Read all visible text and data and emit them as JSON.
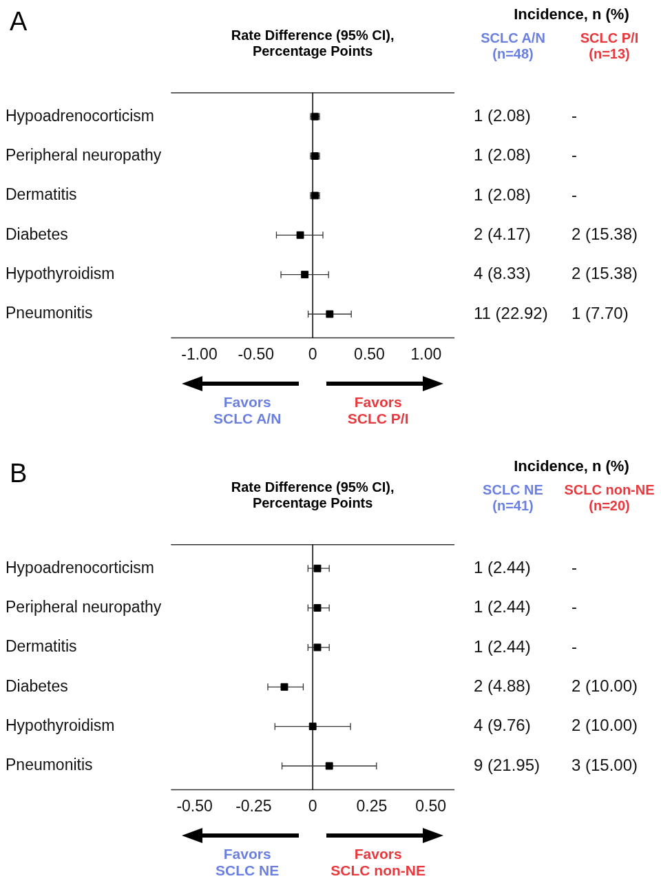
{
  "chart_data": [
    {
      "type": "scatter",
      "title": "A",
      "xlabel": "Rate Difference (95% CI),\nPercentage Points",
      "legend_title": "Incidence, n (%)",
      "orientation": "horizontal",
      "marker": "square",
      "grid": false,
      "legend": false,
      "categories": [
        "Hypoadrenocorticism",
        "Peripheral neuropathy",
        "Dermatitis",
        "Diabetes",
        "Hypothyroidism",
        "Pneumonitis"
      ],
      "series": [
        {
          "color": "#000000",
          "values": [
            0.02,
            0.02,
            0.02,
            -0.11,
            -0.07,
            0.15
          ],
          "errors": [
            [
              -0.02,
              0.06
            ],
            [
              -0.02,
              0.06
            ],
            [
              -0.02,
              0.06
            ],
            [
              -0.32,
              0.09
            ],
            [
              -0.28,
              0.14
            ],
            [
              -0.04,
              0.34
            ]
          ]
        }
      ],
      "xlim": [
        -1.25,
        1.25
      ],
      "xticks": [
        {
          "value": -1,
          "label": "-1.00"
        },
        {
          "value": -0.5,
          "label": "-0.50"
        },
        0,
        {
          "value": 0.5,
          "label": "0.50"
        },
        {
          "value": 1,
          "label": "1.00"
        }
      ],
      "ref_lines": [
        {
          "axis": "x",
          "value": 0,
          "color": "#000000"
        }
      ],
      "annotations": [
        "SCLC A/N\n(n=48)",
        "SCLC P/I\n(n=13)",
        "Favors\nSCLC A/N",
        "Favors\nSCLC P/I",
        "1 (2.08)",
        "-",
        "1 (2.08)",
        "-",
        "1 (2.08)",
        "-",
        "2 (4.17)",
        "2 (15.38)",
        "4 (8.33)",
        "2 (15.38)",
        "11 (22.92)",
        "1 (7.70)"
      ]
    },
    {
      "type": "scatter",
      "title": "B",
      "xlabel": "Rate Difference (95% CI),\nPercentage Points",
      "legend_title": "Incidence, n (%)",
      "orientation": "horizontal",
      "marker": "square",
      "grid": false,
      "legend": false,
      "categories": [
        "Hypoadrenocorticism",
        "Peripheral neuropathy",
        "Dermatitis",
        "Diabetes",
        "Hypothyroidism",
        "Pneumonitis"
      ],
      "series": [
        {
          "color": "#000000",
          "values": [
            0.02,
            0.02,
            0.02,
            -0.12,
            0,
            0.07
          ],
          "errors": [
            [
              -0.02,
              0.07
            ],
            [
              -0.02,
              0.07
            ],
            [
              -0.02,
              0.07
            ],
            [
              -0.19,
              -0.04
            ],
            [
              -0.16,
              0.16
            ],
            [
              -0.13,
              0.27
            ]
          ]
        }
      ],
      "xlim": [
        -0.6,
        0.6
      ],
      "xticks": [
        {
          "value": -0.5,
          "label": "-0.50"
        },
        {
          "value": -0.25,
          "label": "-0.25"
        },
        0,
        {
          "value": 0.25,
          "label": "0.25"
        },
        {
          "value": 0.5,
          "label": "0.50"
        }
      ],
      "ref_lines": [
        {
          "axis": "x",
          "value": 0,
          "color": "#000000"
        }
      ],
      "annotations": [
        "SCLC NE\n(n=41)",
        "SCLC non-NE\n(n=20)",
        "Favors\nSCLC NE",
        "Favors\nSCLC non-NE",
        "1 (2.44)",
        "-",
        "1 (2.44)",
        "-",
        "1 (2.44)",
        "-",
        "2 (4.88)",
        "2 (10.00)",
        "4 (9.76)",
        "2 (10.00)",
        "9 (21.95)",
        "3 (15.00)"
      ]
    }
  ]
}
